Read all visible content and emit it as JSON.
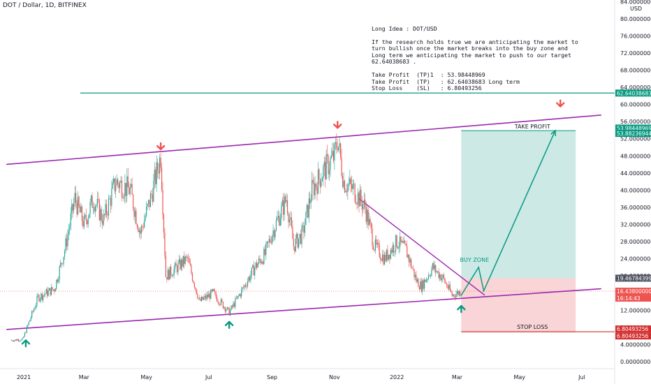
{
  "header": {
    "symbol": "DOT / Dollar, 1D, BITFINEX"
  },
  "note": {
    "title": "Long Idea : DOT/USD",
    "body": "If the research holds true we are anticipating the market to\nturn bullish once the market breaks into the buy zone and\nLong term we anticipating the market to push to our target\n62.64038683 .",
    "tp1": "Take Profit  (TP)1  : 53.98448969",
    "tp": "Take Profit  (TP)   : 62.64038683 Long term",
    "sl": "Stop Loss    (SL)   : 6.80493256"
  },
  "labels": {
    "take_profit": "TAKE PROFIT",
    "buy_zone": "BUY ZONE",
    "stop_loss": "STOP LOSS",
    "currency": "USD"
  },
  "colors": {
    "up": "#26a69a",
    "down": "#ef5350",
    "channel": "#9c27b0",
    "target": "#089981",
    "stop": "#d32f2f",
    "profit_zone": "#cce9e6",
    "loss_zone": "#f9d5d7"
  },
  "chart_data": {
    "type": "candlestick",
    "y_scale": "log",
    "y_tick_labels": [
      "0.00000000",
      "4.00000000",
      "8.00000000",
      "12.00000000",
      "16.00000000",
      "20.00000000",
      "24.00000000",
      "28.00000000",
      "32.00000000",
      "36.00000000",
      "40.00000000",
      "44.00000000",
      "48.00000000",
      "52.00000000",
      "56.00000000",
      "60.00000000",
      "64.00000000",
      "68.00000000",
      "72.00000000",
      "76.00000000",
      "80.00000000",
      "84.00000000"
    ],
    "x_tick_labels": [
      "2021",
      "Mar",
      "May",
      "Jul",
      "Sep",
      "Nov",
      "2022",
      "Mar",
      "May",
      "Jul"
    ],
    "close_path": [
      [
        "2020-12-20",
        5.0
      ],
      [
        "2020-12-31",
        5.2
      ],
      [
        "2021-01-15",
        15.0
      ],
      [
        "2021-01-31",
        17.0
      ],
      [
        "2021-02-10",
        26.0
      ],
      [
        "2021-02-20",
        38.0
      ],
      [
        "2021-03-01",
        32.0
      ],
      [
        "2021-03-10",
        38.0
      ],
      [
        "2021-03-20",
        33.0
      ],
      [
        "2021-04-01",
        42.0
      ],
      [
        "2021-04-15",
        40.0
      ],
      [
        "2021-04-25",
        30.0
      ],
      [
        "2021-05-05",
        38.0
      ],
      [
        "2021-05-15",
        48.0
      ],
      [
        "2021-05-20",
        20.0
      ],
      [
        "2021-05-31",
        22.0
      ],
      [
        "2021-06-10",
        24.0
      ],
      [
        "2021-06-22",
        14.0
      ],
      [
        "2021-07-05",
        16.0
      ],
      [
        "2021-07-21",
        11.5
      ],
      [
        "2021-08-01",
        16.0
      ],
      [
        "2021-08-15",
        22.0
      ],
      [
        "2021-08-25",
        25.0
      ],
      [
        "2021-09-01",
        30.0
      ],
      [
        "2021-09-15",
        38.0
      ],
      [
        "2021-09-22",
        27.0
      ],
      [
        "2021-10-01",
        30.0
      ],
      [
        "2021-10-10",
        40.0
      ],
      [
        "2021-10-20",
        44.0
      ],
      [
        "2021-11-01",
        48.0
      ],
      [
        "2021-11-04",
        52.0
      ],
      [
        "2021-11-10",
        42.0
      ],
      [
        "2021-11-20",
        40.0
      ],
      [
        "2021-12-01",
        36.0
      ],
      [
        "2021-12-10",
        27.0
      ],
      [
        "2021-12-20",
        24.0
      ],
      [
        "2022-01-01",
        28.0
      ],
      [
        "2022-01-10",
        26.0
      ],
      [
        "2022-01-20",
        19.0
      ],
      [
        "2022-01-25",
        17.5
      ],
      [
        "2022-02-05",
        22.0
      ],
      [
        "2022-02-15",
        19.5
      ],
      [
        "2022-02-24",
        15.5
      ],
      [
        "2022-03-05",
        16.4
      ]
    ],
    "trade": {
      "direction": "long",
      "entry": 19.46784399,
      "take_profit_1": 53.98448969,
      "take_profit_2": 53.88236944,
      "target": 62.64038683,
      "stop_loss": 6.80493256,
      "current_price": 16.438,
      "countdown": "16:14:43"
    },
    "projection": [
      [
        "2022-03-05",
        15.5
      ],
      [
        "2022-03-22",
        22.0
      ],
      [
        "2022-03-27",
        16.5
      ],
      [
        "2022-06-05",
        53.9
      ]
    ],
    "channel_upper": [
      [
        "2020-12-15",
        46.0
      ],
      [
        "2022-07-20",
        57.5
      ]
    ],
    "channel_lower": [
      [
        "2020-12-15",
        7.5
      ],
      [
        "2022-07-20",
        17.0
      ]
    ],
    "downtrend": [
      [
        "2021-11-25",
        38.0
      ],
      [
        "2022-03-28",
        15.5
      ]
    ],
    "arrows_down": [
      "2021-05-15",
      "2021-11-04",
      "2022-06-10"
    ],
    "arrows_up": [
      "2021-01-03",
      "2021-07-21",
      "2022-03-05"
    ],
    "price_tags": [
      {
        "text": "62.64038683",
        "color": "#089981"
      },
      {
        "text": "53.98448969",
        "color": "#089981"
      },
      {
        "text": "53.88236944",
        "color": "#089981"
      },
      {
        "text": "19.46784399",
        "color": "#4e5260"
      },
      {
        "text": "16.43800000",
        "color": "#ef5350"
      },
      {
        "text": "6.80493256",
        "color": "#d32f2f"
      },
      {
        "text": "6.80493256",
        "color": "#d32f2f"
      }
    ]
  }
}
